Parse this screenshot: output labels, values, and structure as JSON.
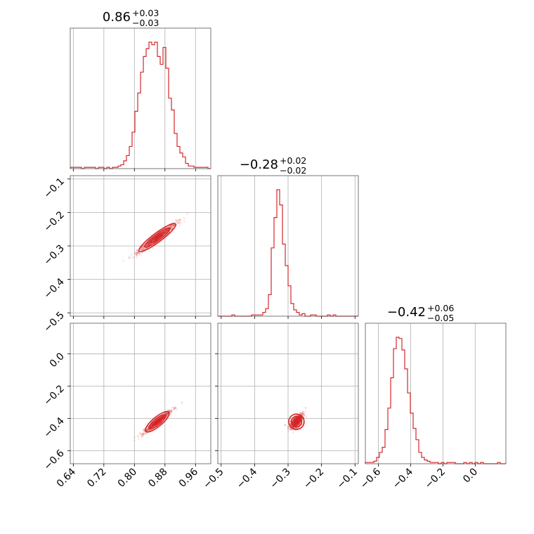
{
  "chart_data": {
    "type": "corner",
    "color": "#d62728",
    "parameters": [
      {
        "title": {
          "median": "0.86",
          "plus": "+0.03",
          "minus": "−0.03"
        },
        "range": [
          0.632,
          1.0
        ],
        "ticks": [
          0.64,
          0.72,
          0.8,
          0.88,
          0.96
        ],
        "tick_labels": [
          "0.64",
          "0.72",
          "0.80",
          "0.88",
          "0.96"
        ],
        "hist": {
          "edges_start": 0.632,
          "bin_width": 0.00736,
          "counts": [
            1,
            1,
            1,
            1,
            0,
            1,
            1,
            1,
            1,
            0,
            1,
            1,
            0,
            1,
            0,
            1,
            1,
            2,
            3,
            6,
            10,
            17,
            28,
            44,
            58,
            74,
            86,
            92,
            97,
            95,
            97,
            86,
            80,
            93,
            77,
            54,
            45,
            27,
            17,
            12,
            9,
            4,
            2,
            2,
            1,
            1,
            1,
            1,
            1,
            0
          ]
        }
      },
      {
        "title": {
          "median": "−0.28",
          "plus": "+0.02",
          "minus": "−0.02"
        },
        "range": [
          -0.51,
          -0.09
        ],
        "ticks": [
          -0.5,
          -0.4,
          -0.3,
          -0.2,
          -0.1
        ],
        "tick_labels": [
          "−0.5",
          "−0.4",
          "−0.3",
          "−0.2",
          "−0.1"
        ],
        "hist": {
          "edges_start": -0.51,
          "bin_width": 0.0084,
          "counts": [
            0,
            0,
            0,
            0,
            0,
            1,
            0,
            0,
            0,
            0,
            0,
            0,
            1,
            1,
            1,
            1,
            3,
            6,
            17,
            54,
            78,
            100,
            88,
            57,
            40,
            24,
            10,
            5,
            3,
            1,
            2,
            0,
            0,
            1,
            1,
            0,
            0,
            0,
            0,
            1,
            0,
            1,
            0,
            0,
            0,
            0,
            0,
            0,
            0,
            0
          ]
        }
      },
      {
        "title": {
          "median": "−0.42",
          "plus": "+0.06",
          "minus": "−0.05"
        },
        "range": [
          -0.68,
          0.19
        ],
        "ticks": [
          -0.6,
          -0.4,
          -0.2,
          0.0
        ],
        "tick_labels": [
          "−0.6",
          "−0.4",
          "−0.2",
          "0.0"
        ],
        "hist": {
          "edges_start": -0.68,
          "bin_width": 0.0174,
          "counts": [
            1,
            1,
            1,
            2,
            5,
            9,
            13,
            27,
            44,
            68,
            91,
            100,
            99,
            90,
            75,
            56,
            40,
            28,
            19,
            9,
            5,
            3,
            2,
            1,
            1,
            1,
            0,
            1,
            0,
            1,
            1,
            1,
            0,
            0,
            0,
            1,
            0,
            1,
            0,
            1,
            0,
            1,
            0,
            0,
            0,
            0,
            0,
            1,
            0,
            0
          ]
        }
      }
    ],
    "scatter_pairs": [
      {
        "x_param": 0,
        "y_param": 1,
        "center": [
          0.86,
          -0.275
        ],
        "sd_major": 0.033,
        "slope": 0.85,
        "sd_minor": 0.006
      },
      {
        "x_param": 0,
        "y_param": 2,
        "center": [
          0.86,
          -0.42
        ],
        "sd_major": 0.035,
        "slope": 1.95,
        "sd_minor": 0.01
      },
      {
        "x_param": 1,
        "y_param": 2,
        "center": [
          -0.275,
          -0.42
        ],
        "sd_major": 0.022,
        "slope": 3.2,
        "sd_minor": 0.02
      }
    ],
    "grid": true
  }
}
